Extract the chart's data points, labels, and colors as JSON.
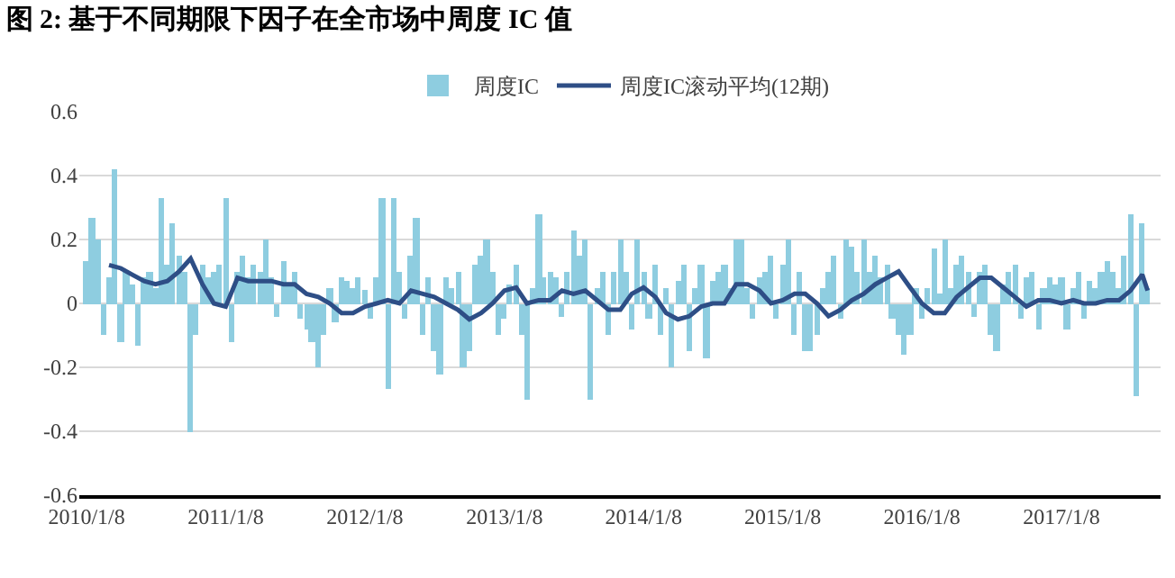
{
  "chart_data": {
    "type": "bar",
    "title": "图 2: 基于不同期限下因子在全市场中周度 IC 值",
    "x": [
      "2010-01-08",
      "2010-01-22",
      "2010-02-08",
      "2010-02-22",
      "2010-03-08",
      "2010-03-22",
      "2010-04-08",
      "2010-04-22",
      "2010-05-08",
      "2010-05-22",
      "2010-06-08",
      "2010-06-22",
      "2010-07-08",
      "2010-07-22",
      "2010-08-08",
      "2010-08-22",
      "2010-09-08",
      "2010-09-22",
      "2010-10-08",
      "2010-10-22",
      "2010-11-08",
      "2010-11-22",
      "2010-12-08",
      "2010-12-22",
      "2011-01-08",
      "2011-01-22",
      "2011-02-08",
      "2011-02-22",
      "2011-03-08",
      "2011-03-22",
      "2011-04-08",
      "2011-04-22",
      "2011-05-08",
      "2011-05-22",
      "2011-06-08",
      "2011-06-22",
      "2011-07-08",
      "2011-07-22",
      "2011-08-08",
      "2011-08-22",
      "2011-09-08",
      "2011-09-22",
      "2011-10-08",
      "2011-10-22",
      "2011-11-08",
      "2011-11-22",
      "2011-12-08",
      "2011-12-22",
      "2012-01-08",
      "2012-01-22",
      "2012-02-08",
      "2012-02-22",
      "2012-03-08",
      "2012-03-22",
      "2012-04-08",
      "2012-04-22",
      "2012-05-08",
      "2012-05-22",
      "2012-06-08",
      "2012-06-22",
      "2012-07-08",
      "2012-07-22",
      "2012-08-08",
      "2012-08-22",
      "2012-09-08",
      "2012-09-22",
      "2012-10-08",
      "2012-10-22",
      "2012-11-08",
      "2012-11-22",
      "2012-12-08",
      "2012-12-22",
      "2013-01-08",
      "2013-01-22",
      "2013-02-08",
      "2013-02-22",
      "2013-03-08",
      "2013-03-22",
      "2013-04-08",
      "2013-04-22",
      "2013-05-08",
      "2013-05-22",
      "2013-06-08",
      "2013-06-22",
      "2013-07-08",
      "2013-07-22",
      "2013-08-08",
      "2013-08-22",
      "2013-09-08",
      "2013-09-22",
      "2013-10-08",
      "2013-10-22",
      "2013-11-08",
      "2013-11-22",
      "2013-12-08",
      "2013-12-22",
      "2014-01-08",
      "2014-01-22",
      "2014-02-08",
      "2014-02-22",
      "2014-03-08",
      "2014-03-22",
      "2014-04-08",
      "2014-04-22",
      "2014-05-08",
      "2014-05-22",
      "2014-06-08",
      "2014-06-22",
      "2014-07-08",
      "2014-07-22",
      "2014-08-08",
      "2014-08-22",
      "2014-09-08",
      "2014-09-22",
      "2014-10-08",
      "2014-10-22",
      "2014-11-08",
      "2014-11-22",
      "2014-12-08",
      "2014-12-22",
      "2015-01-08",
      "2015-01-22",
      "2015-02-08",
      "2015-02-22",
      "2015-03-08",
      "2015-03-22",
      "2015-04-08",
      "2015-04-22",
      "2015-05-08",
      "2015-05-22",
      "2015-06-08",
      "2015-06-22",
      "2015-07-08",
      "2015-07-22",
      "2015-08-08",
      "2015-08-22",
      "2015-09-08",
      "2015-09-22",
      "2015-10-08",
      "2015-10-22",
      "2015-11-08",
      "2015-11-22",
      "2015-12-08",
      "2015-12-22",
      "2016-01-08",
      "2016-01-22",
      "2016-02-08",
      "2016-02-22",
      "2016-03-08",
      "2016-03-22",
      "2016-04-08",
      "2016-04-22",
      "2016-05-08",
      "2016-05-22",
      "2016-06-08",
      "2016-06-22",
      "2016-07-08",
      "2016-07-22",
      "2016-08-08",
      "2016-08-22",
      "2016-09-08",
      "2016-09-22",
      "2016-10-08",
      "2016-10-22",
      "2016-11-08",
      "2016-11-22",
      "2016-12-08",
      "2016-12-22",
      "2017-01-08",
      "2017-01-22",
      "2017-02-08",
      "2017-02-22",
      "2017-03-08",
      "2017-03-22",
      "2017-04-08",
      "2017-04-22",
      "2017-05-08",
      "2017-05-22",
      "2017-06-08",
      "2017-06-22",
      "2017-07-08",
      "2017-07-22",
      "2017-08-08",
      "2017-08-22"
    ],
    "series": [
      {
        "name": "周度IC",
        "color": "#8ecde0",
        "values": [
          0.13,
          0.27,
          0.2,
          -0.1,
          0.08,
          0.42,
          -0.12,
          0.1,
          0.06,
          -0.13,
          0.08,
          0.1,
          0.05,
          0.33,
          0.12,
          0.25,
          0.15,
          0.1,
          -0.4,
          -0.1,
          0.12,
          0.08,
          0.1,
          0.12,
          0.33,
          -0.12,
          0.1,
          0.15,
          0.08,
          0.12,
          0.1,
          0.2,
          0.08,
          -0.04,
          0.13,
          0.06,
          0.1,
          -0.05,
          -0.08,
          -0.12,
          -0.2,
          -0.1,
          0.05,
          -0.06,
          0.08,
          0.07,
          0.05,
          0.08,
          0.04,
          -0.05,
          0.08,
          0.33,
          -0.27,
          0.33,
          0.1,
          -0.05,
          0.15,
          0.27,
          -0.1,
          0.08,
          -0.15,
          -0.22,
          0.08,
          0.05,
          0.1,
          -0.2,
          -0.15,
          0.12,
          0.15,
          0.2,
          0.1,
          -0.1,
          -0.05,
          0.06,
          0.12,
          -0.1,
          -0.3,
          0.05,
          0.28,
          0.08,
          0.1,
          0.08,
          -0.04,
          0.1,
          0.23,
          0.15,
          0.2,
          -0.3,
          0.05,
          0.1,
          -0.1,
          0.1,
          0.2,
          0.1,
          -0.08,
          0.2,
          0.1,
          -0.05,
          0.12,
          -0.1,
          0.05,
          -0.2,
          0.07,
          0.12,
          -0.15,
          0.05,
          0.12,
          -0.17,
          0.07,
          0.1,
          0.12,
          0.05,
          0.2,
          0.2,
          0.05,
          -0.05,
          0.08,
          0.1,
          0.15,
          -0.05,
          0.12,
          0.2,
          -0.1,
          0.1,
          -0.15,
          -0.15,
          -0.1,
          0.05,
          0.1,
          0.15,
          -0.05,
          0.2,
          0.18,
          0.1,
          0.2,
          0.1,
          0.15,
          0.08,
          0.12,
          -0.05,
          -0.1,
          -0.16,
          -0.1,
          0.05,
          -0.05,
          0.05,
          0.17,
          0.03,
          0.2,
          0.05,
          0.12,
          0.15,
          0.1,
          -0.04,
          0.1,
          0.12,
          -0.1,
          -0.15,
          0.06,
          0.1,
          0.12,
          -0.05,
          0.08,
          0.1,
          -0.08,
          0.05,
          0.08,
          0.06,
          0.08,
          -0.08,
          0.05,
          0.1,
          -0.05,
          0.07,
          0.05,
          0.1,
          0.13,
          0.1,
          0.05,
          0.15,
          0.28,
          -0.29,
          0.25,
          0.05
        ]
      },
      {
        "name": "周度IC滚动平均(12期)",
        "type": "line",
        "color": "#2e4e86",
        "x": [
          "2010-03-08",
          "2010-04-08",
          "2010-05-08",
          "2010-06-08",
          "2010-07-08",
          "2010-08-08",
          "2010-09-08",
          "2010-10-08",
          "2010-11-08",
          "2010-12-08",
          "2011-01-08",
          "2011-02-08",
          "2011-03-08",
          "2011-04-08",
          "2011-05-08",
          "2011-06-08",
          "2011-07-08",
          "2011-08-08",
          "2011-09-08",
          "2011-10-08",
          "2011-11-08",
          "2011-12-08",
          "2012-01-08",
          "2012-02-08",
          "2012-03-08",
          "2012-04-08",
          "2012-05-08",
          "2012-06-08",
          "2012-07-08",
          "2012-08-08",
          "2012-09-08",
          "2012-10-08",
          "2012-11-08",
          "2012-12-08",
          "2013-01-08",
          "2013-02-08",
          "2013-03-08",
          "2013-04-08",
          "2013-05-08",
          "2013-06-08",
          "2013-07-08",
          "2013-08-08",
          "2013-09-08",
          "2013-10-08",
          "2013-11-08",
          "2013-12-08",
          "2014-01-08",
          "2014-02-08",
          "2014-03-08",
          "2014-04-08",
          "2014-05-08",
          "2014-06-08",
          "2014-07-08",
          "2014-08-08",
          "2014-09-08",
          "2014-10-08",
          "2014-11-08",
          "2014-12-08",
          "2015-01-08",
          "2015-02-08",
          "2015-03-08",
          "2015-04-08",
          "2015-05-08",
          "2015-06-08",
          "2015-07-08",
          "2015-08-08",
          "2015-09-08",
          "2015-10-08",
          "2015-11-08",
          "2015-12-08",
          "2016-01-08",
          "2016-02-08",
          "2016-03-08",
          "2016-04-08",
          "2016-05-08",
          "2016-06-08",
          "2016-07-08",
          "2016-08-08",
          "2016-09-08",
          "2016-10-08",
          "2016-11-08",
          "2016-12-08",
          "2017-01-08",
          "2017-02-08",
          "2017-03-08",
          "2017-04-08",
          "2017-05-08",
          "2017-06-08",
          "2017-07-08",
          "2017-08-08",
          "2017-08-22"
        ],
        "values": [
          0.12,
          0.11,
          0.09,
          0.07,
          0.06,
          0.07,
          0.1,
          0.14,
          0.06,
          0.0,
          -0.01,
          0.08,
          0.07,
          0.07,
          0.07,
          0.06,
          0.06,
          0.03,
          0.02,
          0.0,
          -0.03,
          -0.03,
          -0.01,
          0.0,
          0.01,
          0.0,
          0.04,
          0.03,
          0.02,
          0.0,
          -0.02,
          -0.05,
          -0.03,
          0.0,
          0.04,
          0.05,
          0.0,
          0.01,
          0.01,
          0.04,
          0.03,
          0.04,
          0.01,
          -0.02,
          -0.02,
          0.03,
          0.05,
          0.02,
          -0.03,
          -0.05,
          -0.04,
          -0.01,
          0.0,
          0.0,
          0.06,
          0.06,
          0.04,
          0.0,
          0.01,
          0.03,
          0.03,
          0.0,
          -0.04,
          -0.02,
          0.01,
          0.03,
          0.06,
          0.08,
          0.1,
          0.05,
          0.0,
          -0.03,
          -0.03,
          0.02,
          0.05,
          0.08,
          0.08,
          0.05,
          0.02,
          -0.01,
          0.01,
          0.01,
          0.0,
          0.01,
          0.0,
          0.0,
          0.01,
          0.01,
          0.04,
          0.09,
          0.04
        ]
      }
    ],
    "xlim": [
      "2009-12-20",
      "2017-09-25"
    ],
    "xticks": [
      {
        "value": "2010-01-08",
        "label": "2010/1/8"
      },
      {
        "value": "2011-01-08",
        "label": "2011/1/8"
      },
      {
        "value": "2012-01-08",
        "label": "2012/1/8"
      },
      {
        "value": "2013-01-08",
        "label": "2013/1/8"
      },
      {
        "value": "2014-01-08",
        "label": "2014/1/8"
      },
      {
        "value": "2015-01-08",
        "label": "2015/1/8"
      },
      {
        "value": "2016-01-08",
        "label": "2016/1/8"
      },
      {
        "value": "2017-01-08",
        "label": "2017/1/8"
      }
    ],
    "ylim": [
      -0.6,
      0.6
    ],
    "yticks": [
      -0.6,
      -0.4,
      -0.2,
      0,
      0.2,
      0.4,
      0.6
    ],
    "grid": "y",
    "legend": "top"
  }
}
